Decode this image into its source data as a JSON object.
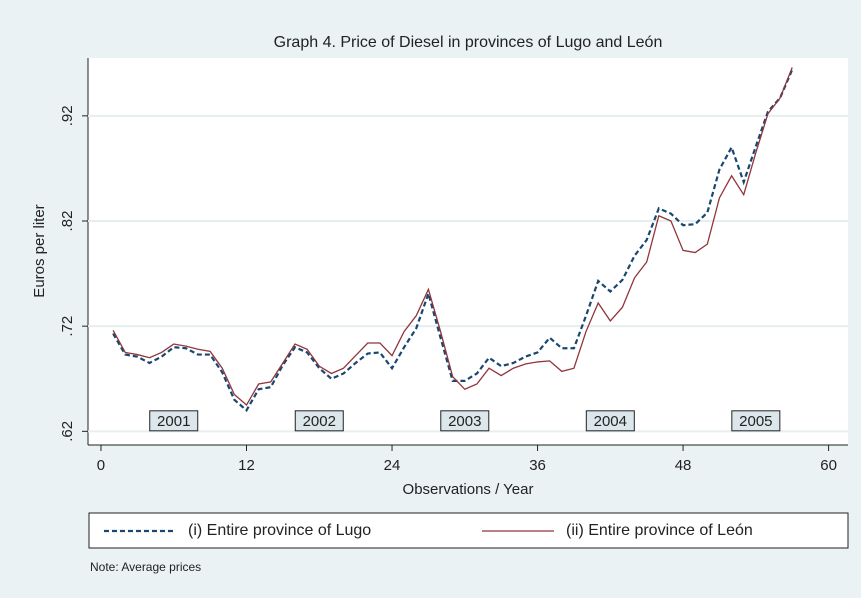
{
  "chart_data": {
    "type": "line",
    "title": "Graph 4. Price of Diesel in provinces of Lugo and León",
    "x_label": "Observations / Year",
    "y_label": "Euros per liter",
    "note": "Note: Average prices",
    "x": [
      1,
      2,
      3,
      4,
      5,
      6,
      7,
      8,
      9,
      10,
      11,
      12,
      13,
      14,
      15,
      16,
      17,
      18,
      19,
      20,
      21,
      22,
      23,
      24,
      25,
      26,
      27,
      28,
      29,
      30,
      31,
      32,
      33,
      34,
      35,
      36,
      37,
      38,
      39,
      40,
      41,
      42,
      43,
      44,
      45,
      46,
      47,
      48,
      49,
      50,
      51,
      52,
      53,
      54,
      55,
      56,
      57
    ],
    "series": [
      {
        "name": "(i) Entire province of Lugo",
        "color": "#1a476f",
        "dashed": true,
        "values": [
          0.713,
          0.693,
          0.691,
          0.685,
          0.691,
          0.7,
          0.699,
          0.693,
          0.693,
          0.676,
          0.65,
          0.64,
          0.66,
          0.662,
          0.683,
          0.7,
          0.695,
          0.68,
          0.67,
          0.675,
          0.685,
          0.694,
          0.695,
          0.68,
          0.7,
          0.718,
          0.751,
          0.709,
          0.668,
          0.668,
          0.675,
          0.69,
          0.682,
          0.685,
          0.691,
          0.695,
          0.709,
          0.699,
          0.699,
          0.73,
          0.763,
          0.753,
          0.764,
          0.787,
          0.802,
          0.832,
          0.827,
          0.816,
          0.817,
          0.828,
          0.869,
          0.89,
          0.857,
          0.891,
          0.924,
          0.937,
          0.964
        ]
      },
      {
        "name": "(ii) Entire province of León",
        "color": "#90353b",
        "dashed": false,
        "values": [
          0.716,
          0.695,
          0.693,
          0.69,
          0.695,
          0.703,
          0.701,
          0.698,
          0.696,
          0.68,
          0.655,
          0.645,
          0.665,
          0.667,
          0.685,
          0.703,
          0.698,
          0.682,
          0.675,
          0.68,
          0.692,
          0.704,
          0.704,
          0.692,
          0.715,
          0.73,
          0.755,
          0.715,
          0.672,
          0.66,
          0.665,
          0.68,
          0.673,
          0.68,
          0.684,
          0.686,
          0.687,
          0.677,
          0.68,
          0.715,
          0.742,
          0.725,
          0.738,
          0.766,
          0.781,
          0.825,
          0.82,
          0.792,
          0.79,
          0.798,
          0.842,
          0.863,
          0.845,
          0.885,
          0.922,
          0.937,
          0.966
        ]
      }
    ],
    "annotations": [
      {
        "text": "2001",
        "x": 6,
        "y": 0.63
      },
      {
        "text": "2002",
        "x": 18,
        "y": 0.63
      },
      {
        "text": "2003",
        "x": 30,
        "y": 0.63
      },
      {
        "text": "2004",
        "x": 42,
        "y": 0.63
      },
      {
        "text": "2005",
        "x": 54,
        "y": 0.63
      }
    ],
    "xlim": [
      -1.07,
      61.6
    ],
    "xticks": [
      0,
      12,
      24,
      36,
      48,
      60
    ],
    "ylim": [
      0.607,
      0.975
    ],
    "yticks": [
      {
        "value": 0.62,
        "label": ".62"
      },
      {
        "value": 0.72,
        "label": ".72"
      },
      {
        "value": 0.82,
        "label": ".82"
      },
      {
        "value": 0.92,
        "label": ".92"
      }
    ],
    "grid": true
  }
}
